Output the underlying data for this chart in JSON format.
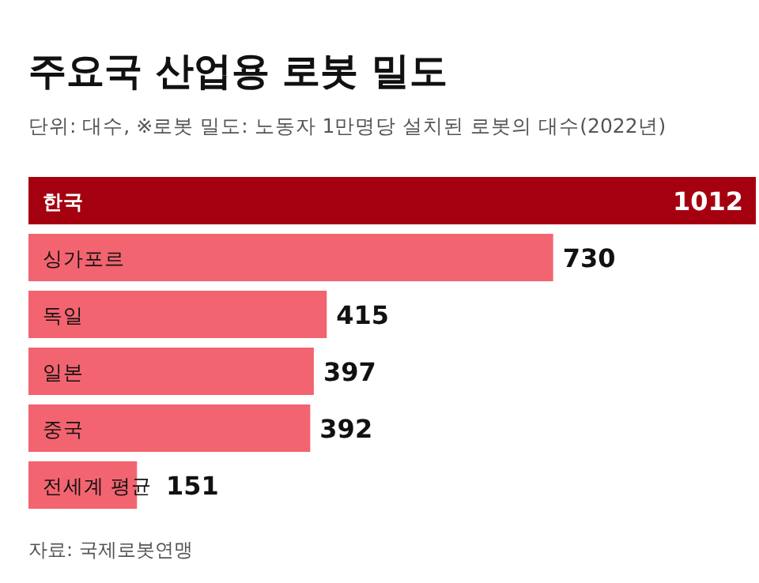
{
  "chart_data": {
    "type": "bar",
    "orientation": "horizontal",
    "title": "주요국 산업용 로봇 밀도",
    "subtitle": "단위: 대수, ※로봇 밀도: 노동자 1만명당 설치된 로봇의 대수(2022년)",
    "categories": [
      "한국",
      "싱가포르",
      "독일",
      "일본",
      "중국",
      "전세계 평균"
    ],
    "values": [
      1012,
      730,
      415,
      397,
      392,
      151
    ],
    "colors": [
      "#a5000f",
      "#f26470",
      "#f26470",
      "#f26470",
      "#f26470",
      "#f26470"
    ],
    "data_labels": true,
    "annotations": [
      "자료: 국제로봇연맹"
    ]
  }
}
